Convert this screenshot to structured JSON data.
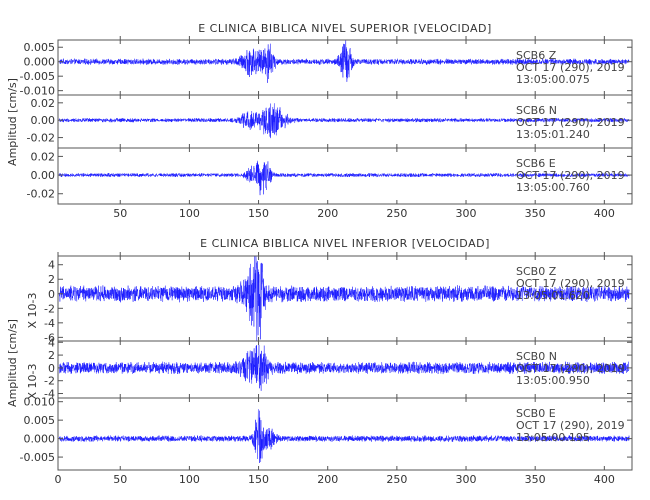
{
  "trace_color": "#1a1aff",
  "chart_data": [
    {
      "type": "line",
      "title": "E CLINICA BIBLICA NIVEL SUPERIOR [VELOCIDAD]",
      "ylabel": "Amplitud [cm/s]",
      "multiplier": "",
      "xlim": [
        5,
        420
      ],
      "xticks": [
        50,
        100,
        150,
        200,
        250,
        300,
        350,
        400
      ],
      "xtick_labels": [
        "50",
        "100",
        "150",
        "200",
        "250",
        "300",
        "350",
        "400"
      ],
      "panels": [
        {
          "channel": "SCB6 Z",
          "date": "OCT 17 (290), 2019",
          "time": "13:05:00.075",
          "ylim": [
            -0.0115,
            0.0075
          ],
          "yticks": [
            0.005,
            0.0,
            -0.005,
            -0.01
          ],
          "ytick_labels": [
            "0.005",
            "0.000",
            "-0.005",
            "-0.010"
          ],
          "noise_level": 0.0011,
          "bursts": [
            {
              "center": 145,
              "width": 7,
              "amplitude": 0.005
            },
            {
              "center": 157,
              "width": 4,
              "amplitude": 0.007
            },
            {
              "center": 213,
              "width": 4,
              "amplitude": 0.0085
            }
          ]
        },
        {
          "channel": "SCB6 N",
          "date": "OCT 17 (290), 2019",
          "time": "13:05:01.240",
          "ylim": [
            -0.032,
            0.029
          ],
          "yticks": [
            0.02,
            0.0,
            -0.02
          ],
          "ytick_labels": [
            "0.02",
            "0.00",
            "-0.02"
          ],
          "noise_level": 0.0025,
          "bursts": [
            {
              "center": 143,
              "width": 6,
              "amplitude": 0.01
            },
            {
              "center": 160,
              "width": 9,
              "amplitude": 0.022
            }
          ]
        },
        {
          "channel": "SCB6 E",
          "date": "OCT 17 (290), 2019",
          "time": "13:05:00.760",
          "ylim": [
            -0.031,
            0.029
          ],
          "yticks": [
            0.02,
            0.0,
            -0.02
          ],
          "ytick_labels": [
            "0.02",
            "0.00",
            "-0.02"
          ],
          "noise_level": 0.0022,
          "bursts": [
            {
              "center": 145,
              "width": 4,
              "amplitude": 0.009
            },
            {
              "center": 153,
              "width": 5,
              "amplitude": 0.025
            }
          ]
        }
      ]
    },
    {
      "type": "line",
      "title": "E CLINICA BIBLICA NIVEL INFERIOR [VELOCIDAD]",
      "ylabel": "Amplitud [cm/s]",
      "multiplier": "X 10-3",
      "xlim": [
        5,
        420
      ],
      "xticks": [
        0,
        50,
        100,
        150,
        200,
        250,
        300,
        350,
        400
      ],
      "xtick_labels": [
        "0",
        "50",
        "100",
        "150",
        "200",
        "250",
        "300",
        "350",
        "400"
      ],
      "panels": [
        {
          "channel": "SCB0 Z",
          "date": "OCT 17 (290), 2019",
          "time": "13:05:01.620",
          "ylim": [
            -6.5,
            5.2
          ],
          "yticks": [
            4,
            2,
            0,
            -2,
            -4,
            -6
          ],
          "ytick_labels": [
            "4",
            "2",
            "0",
            "-2",
            "-4",
            "-6"
          ],
          "noise_level": 1.2,
          "bursts": [
            {
              "center": 145,
              "width": 6,
              "amplitude": 3.5
            },
            {
              "center": 150,
              "width": 4,
              "amplitude": 4.5
            }
          ]
        },
        {
          "channel": "SCB0 N",
          "date": "OCT 17 (290), 2019",
          "time": "13:05:00.950",
          "ylim": [
            -4.7,
            4.2
          ],
          "yticks": [
            4,
            2,
            0,
            -2,
            -4
          ],
          "ytick_labels": [
            "4",
            "2",
            "0",
            "-2",
            "-4"
          ],
          "noise_level": 1.0,
          "bursts": [
            {
              "center": 148,
              "width": 8,
              "amplitude": 3.0
            },
            {
              "center": 153,
              "width": 4,
              "amplitude": 1.5
            }
          ]
        },
        {
          "channel": "SCB0 E",
          "date": "OCT 17 (290), 2019",
          "time": "13:05:00.195",
          "ylim": [
            -0.0085,
            0.011
          ],
          "yticks": [
            0.01,
            0.005,
            0.0,
            -0.005
          ],
          "ytick_labels": [
            "0.010",
            "0.005",
            "0.000",
            "-0.005"
          ],
          "noise_level": 0.0009,
          "bursts": [
            {
              "center": 150,
              "width": 3,
              "amplitude": 0.008
            },
            {
              "center": 157,
              "width": 5,
              "amplitude": 0.003
            }
          ]
        }
      ]
    }
  ]
}
